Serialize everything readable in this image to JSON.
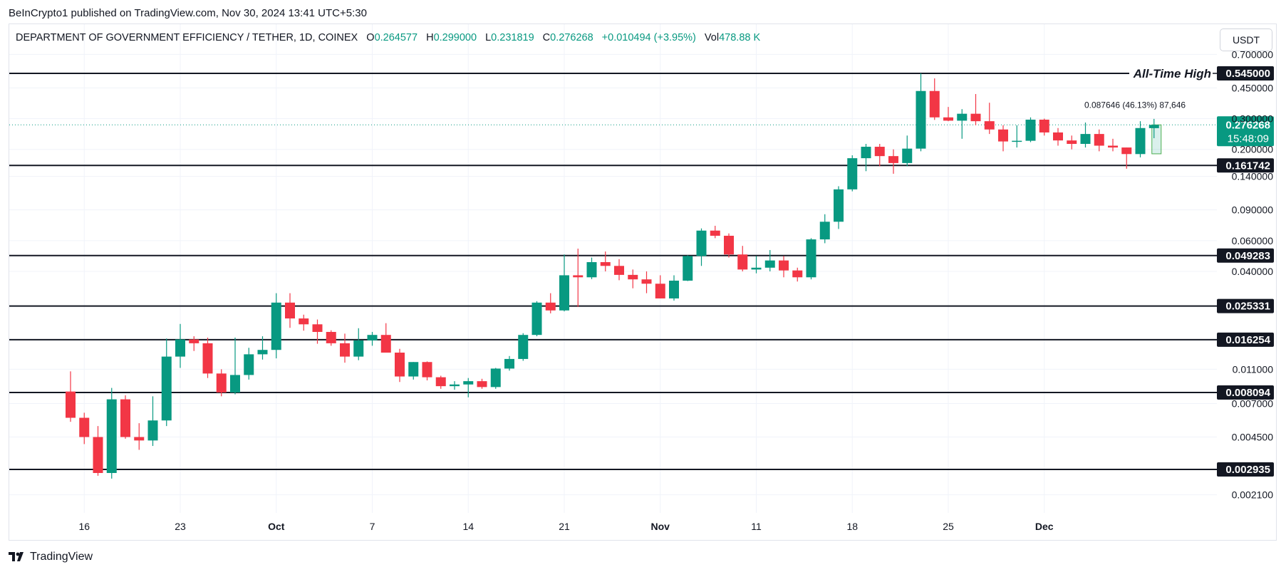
{
  "header": {
    "published_by": "BeInCrypto1 published on TradingView.com, Nov 30, 2024 13:41 UTC+5:30"
  },
  "legend": {
    "symbol": "DEPARTMENT OF GOVERNMENT EFFICIENCY / TETHER, 1D, COINEX",
    "open_label": "O",
    "open": "0.264577",
    "high_label": "H",
    "high": "0.299000",
    "low_label": "L",
    "low": "0.231819",
    "close_label": "C",
    "close": "0.276268",
    "change": "+0.010494 (+3.95%)",
    "vol_label": "Vol",
    "vol": "478.88 K"
  },
  "currency_button": "USDT",
  "footer": {
    "brand": "TradingView"
  },
  "colors": {
    "up": "#089981",
    "down": "#f23645",
    "axis_tag": "#131722",
    "grid": "#f0f3fa"
  },
  "chart_data": {
    "type": "candlestick",
    "scale": "log",
    "title": "DEPARTMENT OF GOVERNMENT EFFICIENCY / TETHER, 1D, COINEX",
    "x_ticks": [
      "16",
      "23",
      "Oct",
      "7",
      "14",
      "21",
      "Nov",
      "11",
      "18",
      "25",
      "Dec"
    ],
    "y_ticks": [
      "0.700000",
      "0.450000",
      "0.300000",
      "0.200000",
      "0.140000",
      "0.090000",
      "0.060000",
      "0.040000",
      "0.011000",
      "0.007000",
      "0.004500",
      "0.002100"
    ],
    "y_tick_values": [
      0.7,
      0.45,
      0.3,
      0.2,
      0.14,
      0.09,
      0.06,
      0.04,
      0.011,
      0.007,
      0.0045,
      0.0021
    ],
    "levels": [
      {
        "label": "0.545000",
        "value": 0.545
      },
      {
        "label": "0.161742",
        "value": 0.161742
      },
      {
        "label": "0.049283",
        "value": 0.049283
      },
      {
        "label": "0.025331",
        "value": 0.025331
      },
      {
        "label": "0.016254",
        "value": 0.016254
      },
      {
        "label": "0.008094",
        "value": 0.008094
      },
      {
        "label": "0.002935",
        "value": 0.002935
      }
    ],
    "ath_label": "All-Time High",
    "current_price": {
      "label": "0.276268",
      "countdown": "15:48:09",
      "value": 0.276268
    },
    "measure": {
      "text": "0.087646 (46.13%) 87,646",
      "from": 0.188622,
      "to": 0.276268
    },
    "ohlc": [
      [
        0.0082,
        0.0107,
        0.0055,
        0.0058
      ],
      [
        0.0058,
        0.0062,
        0.0041,
        0.0045
      ],
      [
        0.0045,
        0.0052,
        0.0027,
        0.0028
      ],
      [
        0.0028,
        0.0086,
        0.0026,
        0.0074
      ],
      [
        0.0074,
        0.0078,
        0.0044,
        0.0045
      ],
      [
        0.0045,
        0.0054,
        0.0038,
        0.0043
      ],
      [
        0.0043,
        0.0077,
        0.004,
        0.0056
      ],
      [
        0.0056,
        0.0165,
        0.0052,
        0.013
      ],
      [
        0.013,
        0.02,
        0.0112,
        0.0163
      ],
      [
        0.0163,
        0.017,
        0.014,
        0.0155
      ],
      [
        0.0155,
        0.0167,
        0.0098,
        0.0104
      ],
      [
        0.0104,
        0.011,
        0.0077,
        0.0081
      ],
      [
        0.0081,
        0.0167,
        0.0079,
        0.0102
      ],
      [
        0.0102,
        0.0146,
        0.0096,
        0.0134
      ],
      [
        0.0134,
        0.017,
        0.0125,
        0.0142
      ],
      [
        0.0142,
        0.03,
        0.0127,
        0.0265
      ],
      [
        0.0265,
        0.03,
        0.019,
        0.0215
      ],
      [
        0.0215,
        0.0226,
        0.0183,
        0.0199
      ],
      [
        0.0199,
        0.0212,
        0.0154,
        0.018
      ],
      [
        0.018,
        0.0184,
        0.015,
        0.0155
      ],
      [
        0.0155,
        0.0176,
        0.012,
        0.013
      ],
      [
        0.013,
        0.0189,
        0.0124,
        0.0161
      ],
      [
        0.0161,
        0.018,
        0.015,
        0.0173
      ],
      [
        0.0173,
        0.0202,
        0.0143,
        0.0137
      ],
      [
        0.0137,
        0.0144,
        0.0093,
        0.01
      ],
      [
        0.01,
        0.0121,
        0.0096,
        0.0121
      ],
      [
        0.0121,
        0.0122,
        0.0095,
        0.0099
      ],
      [
        0.0099,
        0.0101,
        0.0085,
        0.0088
      ],
      [
        0.0088,
        0.0094,
        0.0084,
        0.009
      ],
      [
        0.009,
        0.0098,
        0.0076,
        0.0094
      ],
      [
        0.0094,
        0.0097,
        0.0085,
        0.0087
      ],
      [
        0.0087,
        0.0112,
        0.0085,
        0.0111
      ],
      [
        0.0111,
        0.0131,
        0.0108,
        0.0126
      ],
      [
        0.0126,
        0.0177,
        0.0123,
        0.0173
      ],
      [
        0.0173,
        0.027,
        0.017,
        0.0265
      ],
      [
        0.0265,
        0.03,
        0.023,
        0.0239
      ],
      [
        0.0239,
        0.05,
        0.0236,
        0.038
      ],
      [
        0.038,
        0.054,
        0.025,
        0.037
      ],
      [
        0.037,
        0.048,
        0.0361,
        0.0452
      ],
      [
        0.0452,
        0.052,
        0.04,
        0.043
      ],
      [
        0.043,
        0.047,
        0.0356,
        0.0382
      ],
      [
        0.0382,
        0.041,
        0.032,
        0.036
      ],
      [
        0.036,
        0.04,
        0.03,
        0.034
      ],
      [
        0.034,
        0.038,
        0.028,
        0.028
      ],
      [
        0.028,
        0.038,
        0.0272,
        0.0354
      ],
      [
        0.0354,
        0.0495,
        0.0352,
        0.049
      ],
      [
        0.049,
        0.0705,
        0.043,
        0.0685
      ],
      [
        0.0685,
        0.073,
        0.062,
        0.064
      ],
      [
        0.064,
        0.066,
        0.048,
        0.05
      ],
      [
        0.05,
        0.056,
        0.04,
        0.041
      ],
      [
        0.041,
        0.049,
        0.039,
        0.042
      ],
      [
        0.042,
        0.053,
        0.04,
        0.0462
      ],
      [
        0.0462,
        0.049,
        0.037,
        0.0405
      ],
      [
        0.0405,
        0.042,
        0.035,
        0.037
      ],
      [
        0.037,
        0.062,
        0.036,
        0.061
      ],
      [
        0.061,
        0.085,
        0.058,
        0.077
      ],
      [
        0.077,
        0.123,
        0.07,
        0.118
      ],
      [
        0.118,
        0.185,
        0.115,
        0.178
      ],
      [
        0.178,
        0.215,
        0.15,
        0.207
      ],
      [
        0.207,
        0.215,
        0.16,
        0.183
      ],
      [
        0.183,
        0.2,
        0.145,
        0.167
      ],
      [
        0.167,
        0.24,
        0.16,
        0.202
      ],
      [
        0.202,
        0.545,
        0.195,
        0.432
      ],
      [
        0.432,
        0.51,
        0.295,
        0.305
      ],
      [
        0.305,
        0.35,
        0.29,
        0.292
      ],
      [
        0.292,
        0.34,
        0.23,
        0.32
      ],
      [
        0.32,
        0.415,
        0.275,
        0.29
      ],
      [
        0.29,
        0.37,
        0.245,
        0.26
      ],
      [
        0.26,
        0.275,
        0.195,
        0.222
      ],
      [
        0.222,
        0.275,
        0.205,
        0.224
      ],
      [
        0.224,
        0.305,
        0.22,
        0.296
      ],
      [
        0.296,
        0.3,
        0.24,
        0.25
      ],
      [
        0.25,
        0.265,
        0.21,
        0.225
      ],
      [
        0.225,
        0.24,
        0.2,
        0.215
      ],
      [
        0.215,
        0.285,
        0.205,
        0.245
      ],
      [
        0.245,
        0.26,
        0.195,
        0.21
      ],
      [
        0.21,
        0.23,
        0.195,
        0.205
      ],
      [
        0.205,
        0.205,
        0.155,
        0.188
      ],
      [
        0.188,
        0.29,
        0.18,
        0.265
      ],
      [
        0.2646,
        0.299,
        0.2318,
        0.2763
      ]
    ]
  }
}
